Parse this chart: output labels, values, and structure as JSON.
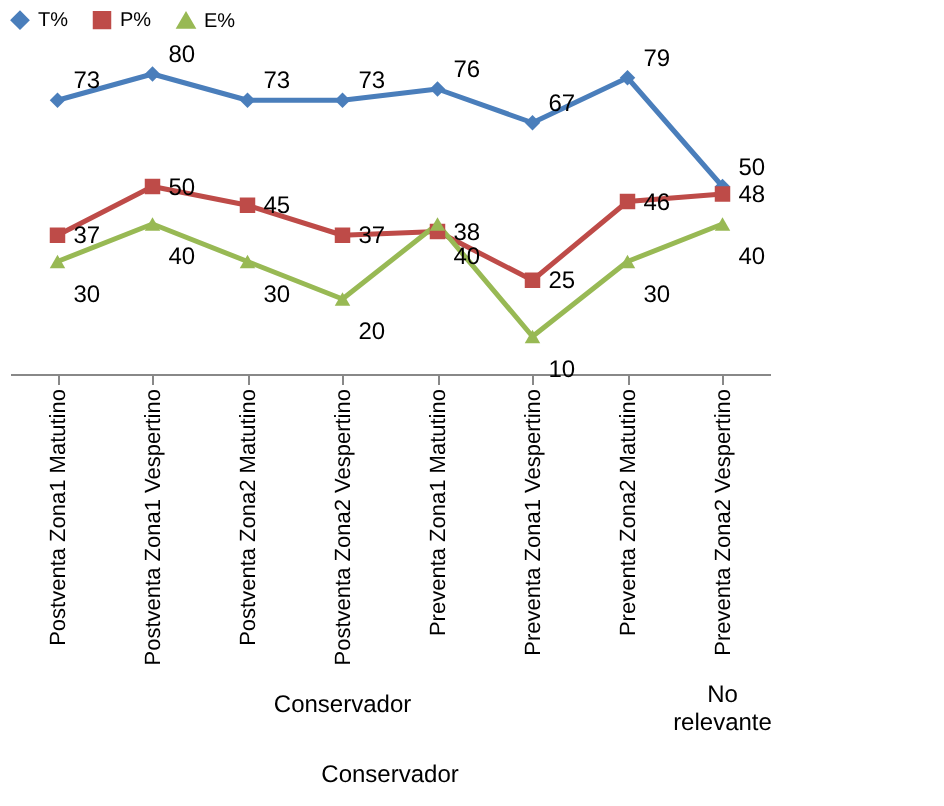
{
  "chart_data": {
    "type": "line",
    "categories": [
      "Postventa Zona1 Matutino",
      "Postventa Zona1 Vespertino",
      "Postventa Zona2 Matutino",
      "Postventa Zona2 Vespertino",
      "Preventa Zona1 Matutino",
      "Preventa Zona1 Vespertino",
      "Preventa Zona2 Matutino",
      "Preventa Zona2 Vespertino"
    ],
    "series": [
      {
        "name": "T%",
        "color": "#4a7ebb",
        "marker": "diamond",
        "values": [
          73,
          80,
          73,
          73,
          76,
          67,
          79,
          50
        ]
      },
      {
        "name": "P%",
        "color": "#be4b48",
        "marker": "square",
        "values": [
          37,
          50,
          45,
          37,
          38,
          25,
          46,
          48
        ]
      },
      {
        "name": "E%",
        "color": "#98b954",
        "marker": "triangle",
        "values": [
          30,
          40,
          30,
          20,
          40,
          10,
          30,
          40
        ]
      }
    ],
    "data_labels": true,
    "legend": "top",
    "grid": false,
    "annotations": [
      "Conservador",
      "No relevante",
      "Conservador"
    ]
  }
}
